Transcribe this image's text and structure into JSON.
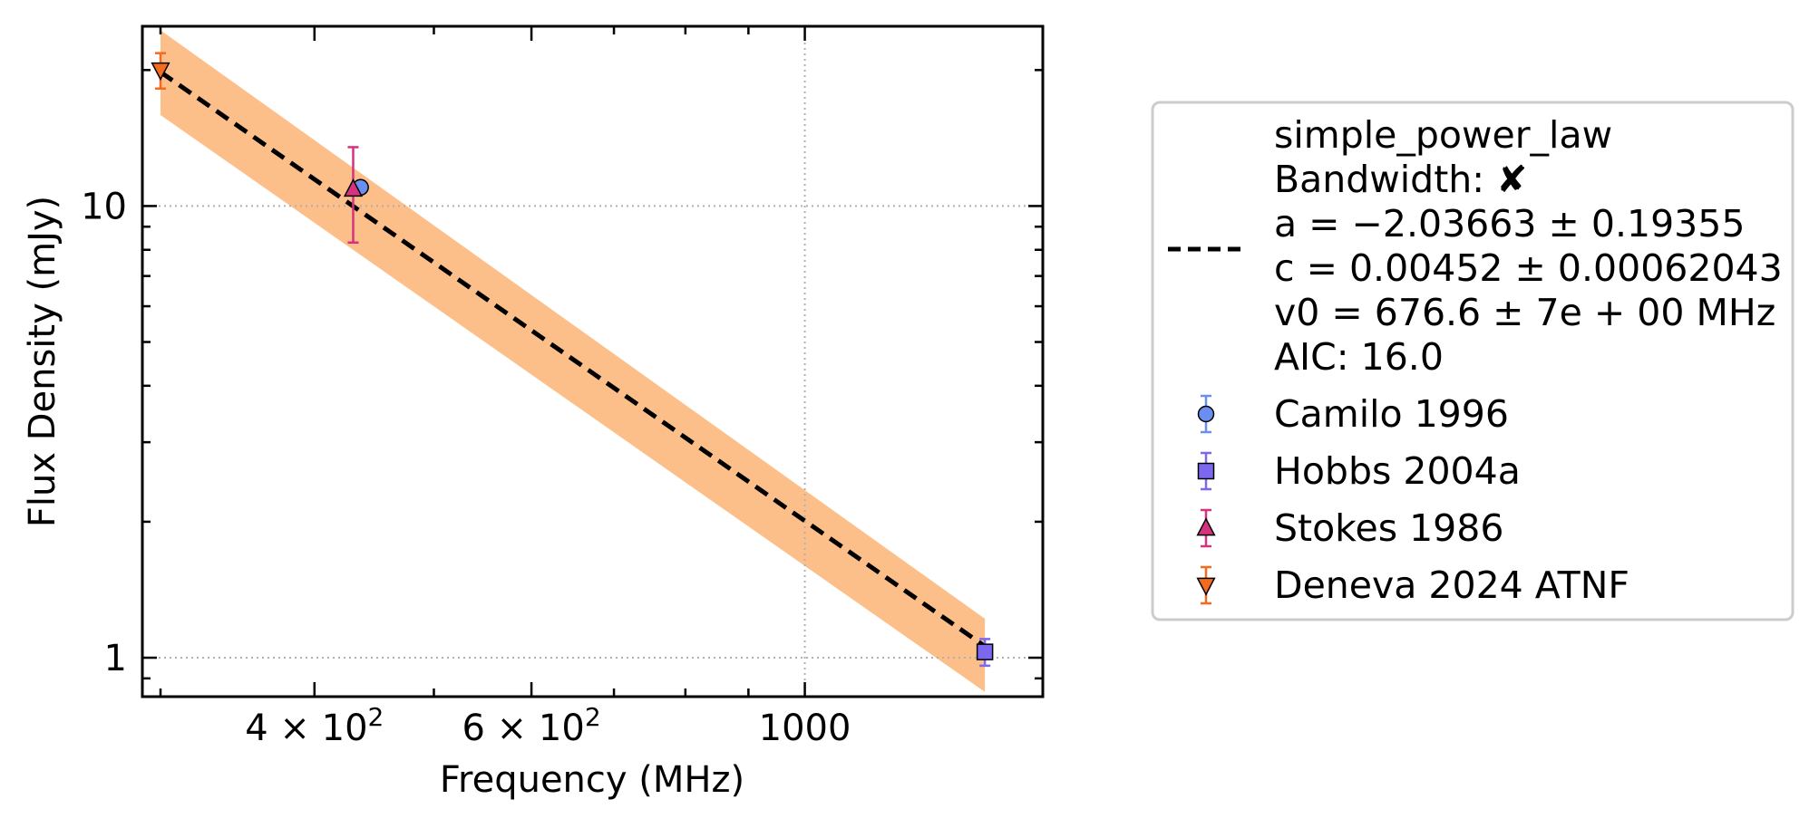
{
  "chart_data": {
    "type": "scatter",
    "xlabel": "Frequency (MHz)",
    "ylabel": "Flux Density (mJy)",
    "xscale": "log",
    "yscale": "log",
    "xlim": [
      290,
      1560
    ],
    "ylim": [
      0.82,
      25
    ],
    "grid": "dotted at major ticks",
    "x_ticks": [
      {
        "value": 400,
        "base": "4 × 10",
        "exp": "2"
      },
      {
        "value": 600,
        "base": "6 × 10",
        "exp": "2"
      },
      {
        "value": 1000,
        "label": "1000"
      }
    ],
    "y_ticks": [
      {
        "value": 1,
        "label": "1"
      },
      {
        "value": 10,
        "label": "10"
      }
    ],
    "fit": {
      "name": "simple_power_law",
      "bandwidth_label": "Bandwidth: ✘",
      "params": [
        "a = −2.03663 ± 0.19355",
        "c = 0.00452 ± 0.00062043",
        "v0 = 676.6 ± 7e + 00 MHz",
        "AIC: 16.0"
      ],
      "line_color": "#000000",
      "band_color": "#fdbf8a",
      "x_range": [
        300,
        1400
      ],
      "line": [
        {
          "x": 300,
          "y": 19.8
        },
        {
          "x": 1400,
          "y": 1.06
        }
      ],
      "band_upper": [
        {
          "x": 300,
          "y": 24.5
        },
        {
          "x": 1400,
          "y": 1.22
        }
      ],
      "band_lower": [
        {
          "x": 300,
          "y": 15.9
        },
        {
          "x": 1400,
          "y": 0.84
        }
      ]
    },
    "series": [
      {
        "name": "Camilo 1996",
        "marker": "circle",
        "color": "#6a8ff0",
        "err_color": "#6a8ff0",
        "points": [
          {
            "x": 436,
            "y": 11.0,
            "yerr": [
              0.0,
              0.0
            ]
          }
        ]
      },
      {
        "name": "Hobbs 2004a",
        "marker": "square",
        "color": "#7b68ee",
        "err_color": "#7b68ee",
        "points": [
          {
            "x": 1400,
            "y": 1.03,
            "yerr": [
              0.07,
              0.07
            ]
          }
        ]
      },
      {
        "name": "Stokes 1986",
        "marker": "triangle-up",
        "color": "#d6337f",
        "err_color": "#d6337f",
        "points": [
          {
            "x": 430,
            "y": 10.9,
            "yerr": [
              2.6,
              2.6
            ]
          }
        ]
      },
      {
        "name": "Deneva 2024 ATNF",
        "marker": "triangle-down",
        "color": "#f26b1f",
        "err_color": "#f26b1f",
        "points": [
          {
            "x": 300,
            "y": 20.0,
            "yerr": [
              1.8,
              1.8
            ]
          }
        ]
      }
    ]
  }
}
